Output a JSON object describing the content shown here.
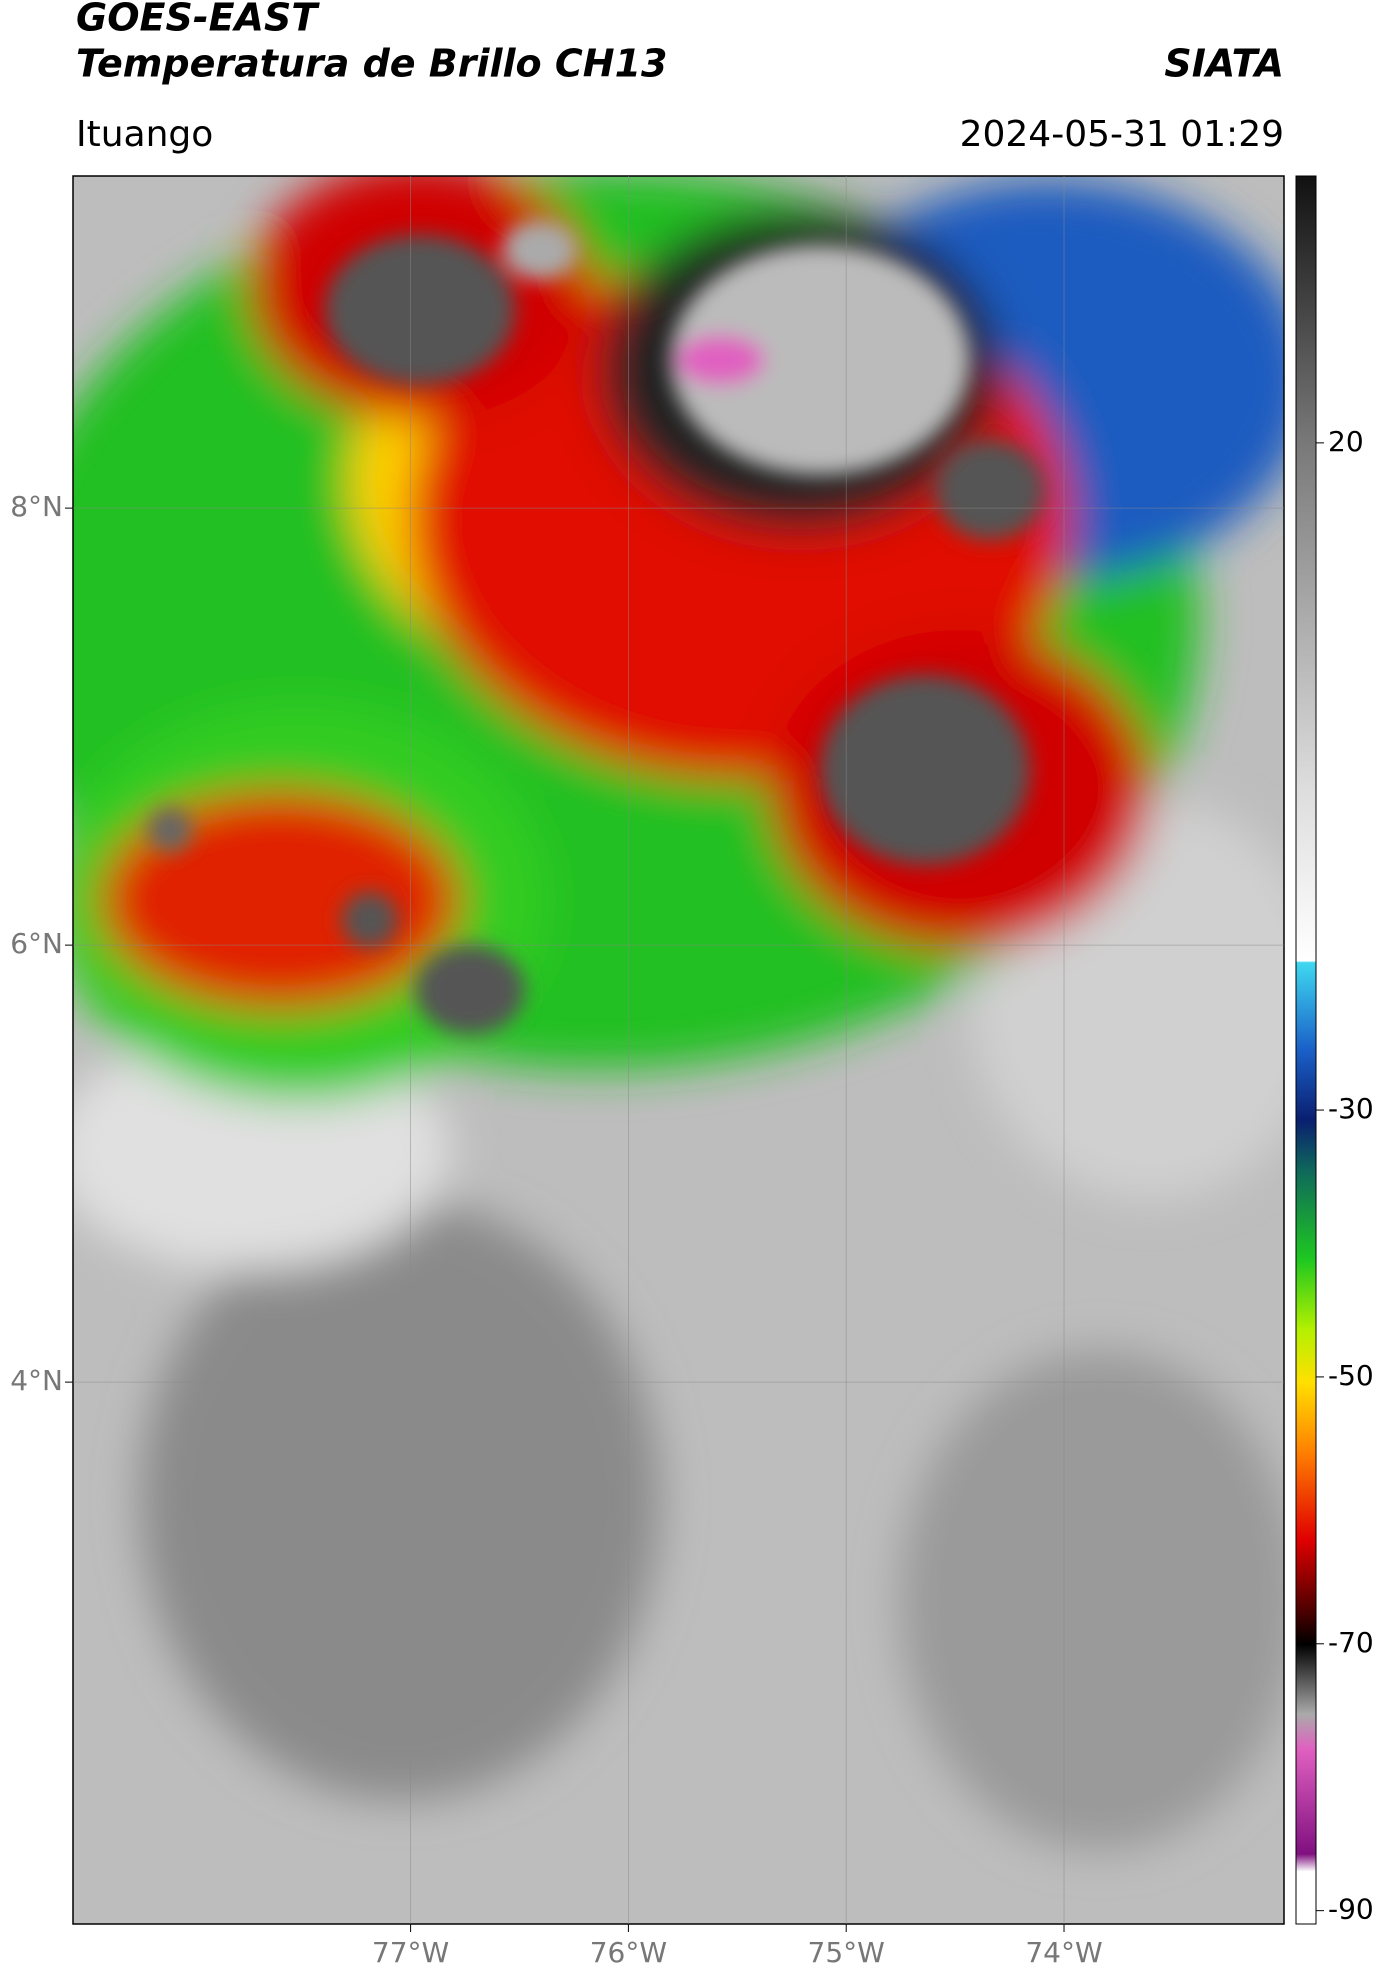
{
  "header": {
    "title_line1": "GOES-EAST",
    "title_line2": "Temperatura de Brillo CH13",
    "agency": "SIATA",
    "location": "Ituango",
    "datetime": "2024-05-31 01:29"
  },
  "map": {
    "lon_range": [
      -78.55,
      -72.99
    ],
    "lat_range": [
      1.52,
      9.52
    ],
    "lat_ticks": [
      {
        "value": 8,
        "label": "8°N"
      },
      {
        "value": 6,
        "label": "6°N"
      },
      {
        "value": 4,
        "label": "4°N"
      }
    ],
    "lon_ticks": [
      {
        "value": -77,
        "label": "77°W"
      },
      {
        "value": -76,
        "label": "76°W"
      },
      {
        "value": -75,
        "label": "75°W"
      },
      {
        "value": -74,
        "label": "74°W"
      }
    ]
  },
  "colorbar": {
    "range": [
      -91,
      40
    ],
    "ticks": [
      20,
      -30,
      -50,
      -70,
      -90
    ]
  }
}
